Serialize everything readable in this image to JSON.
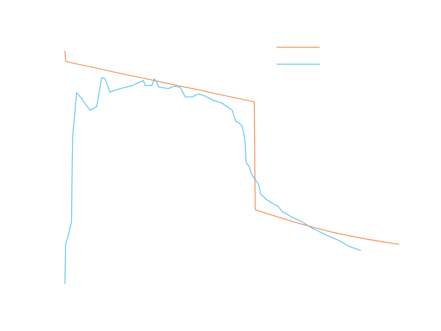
{
  "chart_data": {
    "type": "line",
    "title": "",
    "xlabel": "",
    "ylabel": "",
    "xlim": [
      0,
      100
    ],
    "ylim": [
      0,
      100
    ],
    "grid": false,
    "legend": {
      "placement": "top-right",
      "entries": [
        {
          "series_index": 0,
          "label": ""
        },
        {
          "series_index": 1,
          "label": ""
        }
      ]
    },
    "series": [
      {
        "color": "#f4894a",
        "points": [
          [
            0.0,
            100.0
          ],
          [
            0.2,
            95.4
          ],
          [
            5.0,
            93.9
          ],
          [
            10.0,
            92.4
          ],
          [
            15.0,
            90.8
          ],
          [
            20.0,
            89.3
          ],
          [
            25.0,
            87.8
          ],
          [
            30.0,
            86.2
          ],
          [
            35.0,
            84.7
          ],
          [
            40.0,
            83.2
          ],
          [
            45.0,
            81.6
          ],
          [
            50.0,
            80.1
          ],
          [
            56.6,
            78.1
          ],
          [
            56.9,
            31.8
          ],
          [
            60.0,
            30.3
          ],
          [
            65.0,
            28.1
          ],
          [
            70.0,
            25.9
          ],
          [
            75.0,
            23.9
          ],
          [
            80.0,
            22.1
          ],
          [
            85.0,
            20.6
          ],
          [
            90.0,
            19.2
          ],
          [
            95.0,
            18.0
          ],
          [
            100.0,
            16.9
          ]
        ]
      },
      {
        "color": "#4fc3f1",
        "points": [
          [
            0.0,
            0.0
          ],
          [
            0.2,
            17.0
          ],
          [
            1.0,
            20.5
          ],
          [
            2.0,
            27.0
          ],
          [
            2.1,
            45.0
          ],
          [
            2.3,
            63.0
          ],
          [
            3.5,
            82.0
          ],
          [
            5.0,
            79.5
          ],
          [
            7.5,
            74.5
          ],
          [
            9.5,
            76.0
          ],
          [
            11.0,
            88.5
          ],
          [
            12.0,
            88.0
          ],
          [
            13.5,
            82.3
          ],
          [
            16.0,
            83.5
          ],
          [
            18.0,
            84.3
          ],
          [
            20.0,
            85.0
          ],
          [
            22.0,
            86.3
          ],
          [
            23.5,
            87.2
          ],
          [
            24.0,
            85.0
          ],
          [
            25.5,
            85.2
          ],
          [
            26.0,
            85.0
          ],
          [
            26.7,
            88.0
          ],
          [
            27.5,
            86.5
          ],
          [
            28.0,
            84.5
          ],
          [
            30.0,
            84.0
          ],
          [
            31.0,
            83.8
          ],
          [
            32.0,
            84.5
          ],
          [
            33.0,
            84.8
          ],
          [
            34.5,
            84.3
          ],
          [
            36.0,
            80.2
          ],
          [
            38.0,
            80.2
          ],
          [
            40.0,
            81.5
          ],
          [
            42.0,
            80.5
          ],
          [
            44.0,
            79.0
          ],
          [
            47.0,
            77.5
          ],
          [
            50.0,
            74.5
          ],
          [
            51.0,
            70.0
          ],
          [
            52.0,
            69.0
          ],
          [
            53.0,
            67.8
          ],
          [
            53.8,
            62.0
          ],
          [
            54.2,
            52.0
          ],
          [
            55.0,
            50.5
          ],
          [
            56.0,
            46.5
          ],
          [
            57.0,
            44.5
          ],
          [
            58.0,
            42.5
          ],
          [
            58.5,
            38.5
          ],
          [
            60.0,
            36.5
          ],
          [
            61.0,
            35.5
          ],
          [
            62.0,
            34.5
          ],
          [
            63.5,
            33.5
          ],
          [
            65.0,
            31.0
          ],
          [
            68.0,
            28.5
          ],
          [
            71.0,
            26.5
          ],
          [
            74.0,
            23.8
          ],
          [
            78.0,
            21.0
          ],
          [
            82.0,
            18.5
          ],
          [
            85.0,
            16.0
          ],
          [
            88.0,
            14.5
          ],
          [
            88.5,
            14.2
          ]
        ]
      }
    ]
  }
}
